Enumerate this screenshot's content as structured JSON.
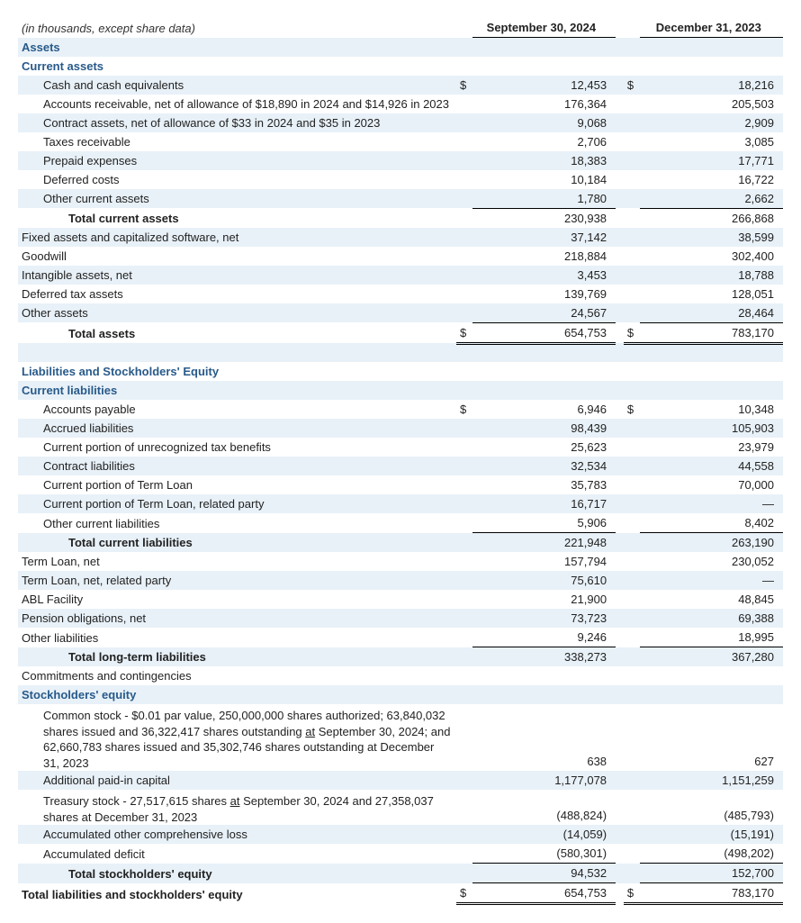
{
  "meta": {
    "note": "(in thousands, except share data)",
    "col1": "September 30, 2024",
    "col2": "December 31, 2023"
  },
  "colors": {
    "shade": "#e8f1f8",
    "section_text": "#285a8a",
    "border": "#000000"
  },
  "sections": {
    "assets": "Assets",
    "current_assets": "Current assets",
    "liab_eq": "Liabilities and Stockholders' Equity",
    "current_liab": "Current liabilities",
    "commit": "Commitments and contingencies",
    "stockholders": "Stockholders' equity"
  },
  "rows": {
    "cash": {
      "label": "Cash and cash equivalents",
      "s1": "$",
      "v1": "12,453",
      "s2": "$",
      "v2": "18,216"
    },
    "ar": {
      "label": "Accounts receivable, net of allowance of $18,890 in 2024 and $14,926 in 2023",
      "v1": "176,364",
      "v2": "205,503"
    },
    "contract_a": {
      "label": "Contract assets, net of allowance of $33 in 2024 and $35 in 2023",
      "v1": "9,068",
      "v2": "2,909"
    },
    "tax_recv": {
      "label": "Taxes receivable",
      "v1": "2,706",
      "v2": "3,085"
    },
    "prepaid": {
      "label": "Prepaid expenses",
      "v1": "18,383",
      "v2": "17,771"
    },
    "def_costs": {
      "label": "Deferred costs",
      "v1": "10,184",
      "v2": "16,722"
    },
    "other_ca": {
      "label": "Other current assets",
      "v1": "1,780",
      "v2": "2,662"
    },
    "total_ca": {
      "label": "Total current assets",
      "v1": "230,938",
      "v2": "266,868"
    },
    "fixed": {
      "label": "Fixed assets and capitalized software, net",
      "v1": "37,142",
      "v2": "38,599"
    },
    "goodwill": {
      "label": "Goodwill",
      "v1": "218,884",
      "v2": "302,400"
    },
    "intangible": {
      "label": "Intangible assets, net",
      "v1": "3,453",
      "v2": "18,788"
    },
    "dta": {
      "label": "Deferred tax assets",
      "v1": "139,769",
      "v2": "128,051"
    },
    "other_a": {
      "label": "Other assets",
      "v1": "24,567",
      "v2": "28,464"
    },
    "total_a": {
      "label": "Total assets",
      "s1": "$",
      "v1": "654,753",
      "s2": "$",
      "v2": "783,170"
    },
    "ap": {
      "label": "Accounts payable",
      "s1": "$",
      "v1": "6,946",
      "s2": "$",
      "v2": "10,348"
    },
    "accrued": {
      "label": "Accrued liabilities",
      "v1": "98,439",
      "v2": "105,903"
    },
    "tax_ben": {
      "label": "Current portion of unrecognized tax benefits",
      "v1": "25,623",
      "v2": "23,979"
    },
    "contract_l": {
      "label": "Contract liabilities",
      "v1": "32,534",
      "v2": "44,558"
    },
    "term_cur": {
      "label": "Current portion of Term Loan",
      "v1": "35,783",
      "v2": "70,000"
    },
    "term_cur_rp": {
      "label": "Current portion of Term Loan, related party",
      "v1": "16,717",
      "v2": "—"
    },
    "other_cl": {
      "label": "Other current liabilities",
      "v1": "5,906",
      "v2": "8,402"
    },
    "total_cl": {
      "label": "Total current liabilities",
      "v1": "221,948",
      "v2": "263,190"
    },
    "term_net": {
      "label": "Term Loan, net",
      "v1": "157,794",
      "v2": "230,052"
    },
    "term_net_rp": {
      "label": "Term Loan, net, related party",
      "v1": "75,610",
      "v2": "—"
    },
    "abl": {
      "label": "ABL Facility",
      "v1": "21,900",
      "v2": "48,845"
    },
    "pension": {
      "label": "Pension obligations, net",
      "v1": "73,723",
      "v2": "69,388"
    },
    "other_l": {
      "label": "Other liabilities",
      "v1": "9,246",
      "v2": "18,995"
    },
    "total_ltl": {
      "label": "Total long-term liabilities",
      "v1": "338,273",
      "v2": "367,280"
    },
    "common": {
      "v1": "638",
      "v2": "627",
      "l1": "Common stock - $0.01 par value, 250,000,000 shares authorized; 63,840,032 shares issued and 36,322,417 shares outstanding ",
      "l2": "at",
      "l3": " September 30, 2024; and 62,660,783 shares issued and 35,302,746 shares outstanding at December 31, 2023"
    },
    "apic": {
      "label": "Additional paid-in capital",
      "v1": "1,177,078",
      "v2": "1,151,259"
    },
    "treasury": {
      "v1": "(488,824)",
      "v2": "(485,793)",
      "l1": "Treasury stock - 27,517,615 shares ",
      "l2": "at",
      "l3": " September 30, 2024 and 27,358,037 shares at December 31, 2023"
    },
    "aoci": {
      "label": "Accumulated other comprehensive loss",
      "v1": "(14,059)",
      "v2": "(15,191)"
    },
    "deficit": {
      "label": "Accumulated deficit",
      "v1": "(580,301)",
      "v2": "(498,202)"
    },
    "total_se": {
      "label": "Total stockholders' equity",
      "v1": "94,532",
      "v2": "152,700"
    },
    "total_lse": {
      "label": "Total liabilities and stockholders' equity",
      "s1": "$",
      "v1": "654,753",
      "s2": "$",
      "v2": "783,170"
    }
  }
}
